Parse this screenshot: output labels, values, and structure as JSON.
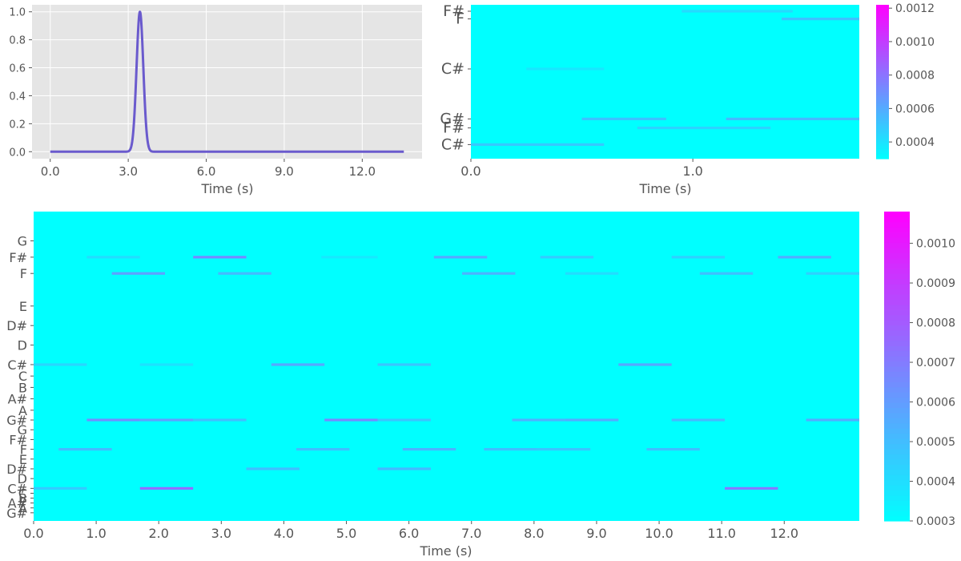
{
  "chart_data": [
    {
      "type": "line",
      "title": "",
      "xlabel": "Time (s)",
      "ylabel": "",
      "xlim": [
        -0.7,
        14.3
      ],
      "ylim": [
        -0.05,
        1.05
      ],
      "xticks": [
        "0.0",
        "3.0",
        "6.0",
        "9.0",
        "12.0"
      ],
      "xtick_values": [
        0,
        3,
        6,
        9,
        12
      ],
      "yticks": [
        "0.0",
        "0.2",
        "0.4",
        "0.6",
        "0.8",
        "1.0"
      ],
      "ytick_values": [
        0,
        0.2,
        0.4,
        0.6,
        0.8,
        1.0
      ],
      "grid": true,
      "background": "#e5e5e5",
      "series": [
        {
          "color": "#6a5acd",
          "shape": "gaussian-peak",
          "x_range": [
            0,
            13.6
          ],
          "peak_x": 3.45,
          "peak_y": 1.0,
          "sigma": 0.13
        }
      ]
    },
    {
      "type": "heatmap",
      "title": "",
      "xlabel": "Time (s)",
      "xlim": [
        0,
        1.75
      ],
      "xticks": [
        "0.0",
        "1.0"
      ],
      "xtick_values": [
        0,
        1
      ],
      "ylim": [
        0,
        12
      ],
      "ytick_labels": [
        "C#",
        "F#",
        "G#",
        "C#",
        "F",
        "F#"
      ],
      "ytick_values": [
        1.1,
        2.4,
        3.1,
        7.0,
        10.9,
        11.5
      ],
      "colormap": "cool",
      "background_color": "#00ffff",
      "colorbar": {
        "min": 0.0003,
        "max": 0.00122,
        "ticks": [
          "0.0004",
          "0.0006",
          "0.0008",
          "0.0010",
          "0.0012"
        ],
        "tick_values": [
          0.0004,
          0.0006,
          0.0008,
          0.001,
          0.0012
        ]
      },
      "notes": [
        {
          "x0": 0.0,
          "x1": 0.6,
          "y": 1.1,
          "v": 0.00052
        },
        {
          "x0": 0.75,
          "x1": 1.35,
          "y": 2.4,
          "v": 0.00048
        },
        {
          "x0": 0.5,
          "x1": 0.88,
          "y": 3.1,
          "v": 0.00055
        },
        {
          "x0": 1.15,
          "x1": 1.75,
          "y": 3.1,
          "v": 0.00058
        },
        {
          "x0": 0.25,
          "x1": 0.6,
          "y": 7.0,
          "v": 0.0004
        },
        {
          "x0": 1.4,
          "x1": 1.75,
          "y": 10.9,
          "v": 0.00055
        },
        {
          "x0": 0.95,
          "x1": 1.45,
          "y": 11.5,
          "v": 0.00045
        }
      ]
    },
    {
      "type": "heatmap",
      "title": "",
      "xlabel": "Time (s)",
      "xlim": [
        0,
        13.2
      ],
      "xticks": [
        "0.0",
        "1.0",
        "2.0",
        "3.0",
        "4.0",
        "5.0",
        "6.0",
        "7.0",
        "8.0",
        "9.0",
        "10.0",
        "11.0",
        "12.0"
      ],
      "xtick_values": [
        0,
        1,
        2,
        3,
        4,
        5,
        6,
        7,
        8,
        9,
        10,
        11,
        12
      ],
      "ylim": [
        -0.5,
        18.5
      ],
      "ytick_labels": [
        "G#",
        "A",
        "A#",
        "B",
        "C",
        "C#",
        "D",
        "D#",
        "E",
        "F",
        "F#",
        "G",
        "G#",
        "A",
        "A#",
        "B",
        "C",
        "C#",
        "D",
        "D#",
        "E",
        "F",
        "F#",
        "G"
      ],
      "ytick_values": [
        0,
        0.3,
        0.6,
        0.9,
        1.2,
        1.5,
        2.1,
        2.7,
        3.3,
        3.9,
        4.5,
        5.1,
        5.7,
        6.3,
        7.0,
        7.7,
        8.4,
        9.1,
        10.3,
        11.5,
        12.7,
        14.7,
        15.7,
        16.7
      ],
      "colormap": "cool",
      "background_color": "#00ffff",
      "colorbar": {
        "min": 0.0003,
        "max": 0.00108,
        "ticks": [
          "0.0003",
          "0.0004",
          "0.0005",
          "0.0006",
          "0.0007",
          "0.0008",
          "0.0009",
          "0.0010"
        ],
        "tick_values": [
          0.0003,
          0.0004,
          0.0005,
          0.0006,
          0.0007,
          0.0008,
          0.0009,
          0.001
        ]
      },
      "notes": [
        {
          "x0": 0.85,
          "x1": 1.7,
          "y": 15.7,
          "v": 0.00042
        },
        {
          "x0": 2.55,
          "x1": 3.4,
          "y": 15.7,
          "v": 0.0007
        },
        {
          "x0": 4.6,
          "x1": 5.5,
          "y": 15.7,
          "v": 0.00038
        },
        {
          "x0": 6.4,
          "x1": 7.25,
          "y": 15.7,
          "v": 0.0006
        },
        {
          "x0": 8.1,
          "x1": 8.95,
          "y": 15.7,
          "v": 0.00048
        },
        {
          "x0": 10.2,
          "x1": 11.05,
          "y": 15.7,
          "v": 0.00046
        },
        {
          "x0": 11.9,
          "x1": 12.75,
          "y": 15.7,
          "v": 0.00058
        },
        {
          "x0": 1.25,
          "x1": 2.1,
          "y": 14.7,
          "v": 0.00062
        },
        {
          "x0": 2.95,
          "x1": 3.8,
          "y": 14.7,
          "v": 0.00054
        },
        {
          "x0": 6.85,
          "x1": 7.7,
          "y": 14.7,
          "v": 0.00056
        },
        {
          "x0": 8.5,
          "x1": 9.35,
          "y": 14.7,
          "v": 0.00042
        },
        {
          "x0": 10.65,
          "x1": 11.5,
          "y": 14.7,
          "v": 0.00052
        },
        {
          "x0": 12.35,
          "x1": 13.2,
          "y": 14.7,
          "v": 0.00046
        },
        {
          "x0": 0.0,
          "x1": 0.85,
          "y": 9.1,
          "v": 0.00044
        },
        {
          "x0": 1.7,
          "x1": 2.55,
          "y": 9.1,
          "v": 0.0004
        },
        {
          "x0": 3.8,
          "x1": 4.65,
          "y": 9.1,
          "v": 0.0006
        },
        {
          "x0": 5.5,
          "x1": 6.35,
          "y": 9.1,
          "v": 0.0005
        },
        {
          "x0": 9.35,
          "x1": 10.2,
          "y": 9.1,
          "v": 0.0006
        },
        {
          "x0": 0.85,
          "x1": 1.7,
          "y": 5.7,
          "v": 0.00068
        },
        {
          "x0": 1.7,
          "x1": 2.55,
          "y": 5.7,
          "v": 0.00062
        },
        {
          "x0": 2.55,
          "x1": 3.4,
          "y": 5.7,
          "v": 0.00052
        },
        {
          "x0": 4.65,
          "x1": 5.5,
          "y": 5.7,
          "v": 0.0007
        },
        {
          "x0": 5.5,
          "x1": 6.35,
          "y": 5.7,
          "v": 0.0005
        },
        {
          "x0": 7.65,
          "x1": 8.5,
          "y": 5.7,
          "v": 0.00056
        },
        {
          "x0": 8.5,
          "x1": 9.35,
          "y": 5.7,
          "v": 0.00058
        },
        {
          "x0": 10.2,
          "x1": 11.05,
          "y": 5.7,
          "v": 0.00054
        },
        {
          "x0": 12.35,
          "x1": 13.2,
          "y": 5.7,
          "v": 0.00058
        },
        {
          "x0": 0.4,
          "x1": 1.25,
          "y": 3.9,
          "v": 0.00054
        },
        {
          "x0": 4.2,
          "x1": 5.05,
          "y": 3.9,
          "v": 0.00052
        },
        {
          "x0": 5.9,
          "x1": 6.75,
          "y": 3.9,
          "v": 0.00056
        },
        {
          "x0": 7.2,
          "x1": 8.05,
          "y": 3.9,
          "v": 0.00052
        },
        {
          "x0": 8.05,
          "x1": 8.9,
          "y": 3.9,
          "v": 0.0005
        },
        {
          "x0": 9.8,
          "x1": 10.65,
          "y": 3.9,
          "v": 0.00052
        },
        {
          "x0": 3.4,
          "x1": 4.25,
          "y": 2.7,
          "v": 0.00052
        },
        {
          "x0": 5.5,
          "x1": 6.35,
          "y": 2.7,
          "v": 0.00054
        },
        {
          "x0": 0.0,
          "x1": 0.85,
          "y": 1.5,
          "v": 0.00048
        },
        {
          "x0": 1.7,
          "x1": 2.55,
          "y": 1.5,
          "v": 0.0008
        },
        {
          "x0": 11.05,
          "x1": 11.9,
          "y": 1.5,
          "v": 0.00076
        }
      ]
    }
  ]
}
